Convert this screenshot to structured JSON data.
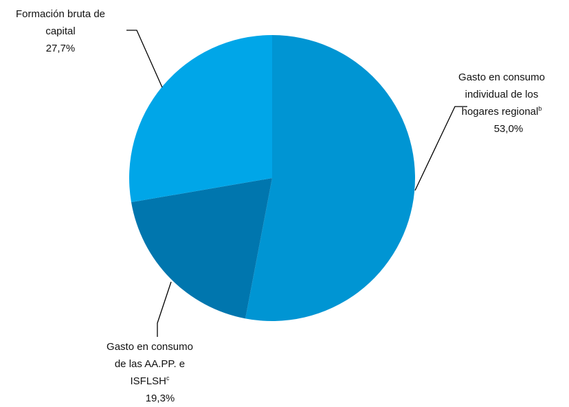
{
  "chart_data": {
    "type": "pie",
    "categories": [
      "Gasto en consumo individual de los hogares regional",
      "Gasto en consumo de las AA.PP. e ISFLSH",
      "Formación bruta de capital"
    ],
    "category_superscripts": [
      "b",
      "c",
      null
    ],
    "values": [
      53.0,
      19.3,
      27.7
    ],
    "value_labels": [
      "53,0%",
      "19,3%",
      "27,7%"
    ],
    "colors": [
      "#0095d3",
      "#0076ae",
      "#00a6e8"
    ]
  }
}
